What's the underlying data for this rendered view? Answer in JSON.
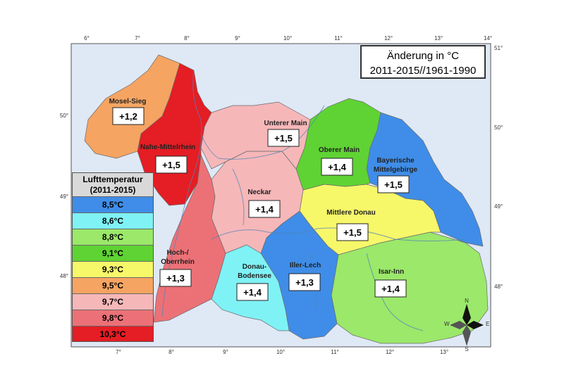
{
  "title": {
    "line1": "Änderung in °C",
    "line2": "2011-2015//1961-1990"
  },
  "legend": {
    "title_line1": "Lufttemperatur",
    "title_line2": "(2011-2015)",
    "items": [
      {
        "label": "8,5°C",
        "color": "#3f8de8"
      },
      {
        "label": "8,6°C",
        "color": "#7ff2f5"
      },
      {
        "label": "8,8°C",
        "color": "#9be86a"
      },
      {
        "label": "9,1°C",
        "color": "#5fd333"
      },
      {
        "label": "9,3°C",
        "color": "#f7f76a"
      },
      {
        "label": "9,5°C",
        "color": "#f5a462"
      },
      {
        "label": "9,7°C",
        "color": "#f6b7b9"
      },
      {
        "label": "9,8°C",
        "color": "#ec7177"
      },
      {
        "label": "10,3°C",
        "color": "#e51d24"
      }
    ]
  },
  "regions": [
    {
      "name": "Mosel-Sieg",
      "value": "+1,2",
      "color": "#f5a462"
    },
    {
      "name": "Nahe-Mittelrhein",
      "value": "+1,5",
      "color": "#e51d24"
    },
    {
      "name": "Unterer Main",
      "value": "+1,5",
      "color": "#f6b7b9"
    },
    {
      "name": "Oberer Main",
      "value": "+1,4",
      "color": "#5fd333"
    },
    {
      "name": "Bayerische Mittelgebirge",
      "name_line1": "Bayerische",
      "name_line2": "Mittelgebirge",
      "value": "+1,5",
      "color": "#3f8de8"
    },
    {
      "name": "Neckar",
      "value": "+1,4",
      "color": "#f6b7b9"
    },
    {
      "name": "Mittlere Donau",
      "value": "+1,5",
      "color": "#f7f76a"
    },
    {
      "name": "Hoch-/Oberrhein",
      "name_line1": "Hoch-/",
      "name_line2": "Oberrhein",
      "value": "+1,3",
      "color": "#ec7177"
    },
    {
      "name": "Donau-Bodensee",
      "name_line1": "Donau-",
      "name_line2": "Bodensee",
      "value": "+1,4",
      "color": "#7ff2f5"
    },
    {
      "name": "Iller-Lech",
      "value": "+1,3",
      "color": "#3f8de8"
    },
    {
      "name": "Isar-Inn",
      "value": "+1,4",
      "color": "#9be86a"
    }
  ],
  "axes": {
    "top_lon": [
      "6°",
      "7°",
      "8°",
      "9°",
      "10°",
      "11°",
      "12°",
      "13°",
      "14°"
    ],
    "bottom_lon": [
      "7°",
      "8°",
      "9°",
      "10°",
      "11°",
      "12°",
      "13°"
    ],
    "left_lat": [
      "50°",
      "49°",
      "48°"
    ],
    "right_lat": [
      "51°",
      "50°",
      "49°",
      "48°"
    ]
  },
  "compass": {
    "n": "N",
    "e": "E",
    "s": "S",
    "w": "W"
  },
  "colors": {
    "background_sea": "#dfe8f5",
    "frame": "#555555",
    "river": "#4f86b8"
  }
}
